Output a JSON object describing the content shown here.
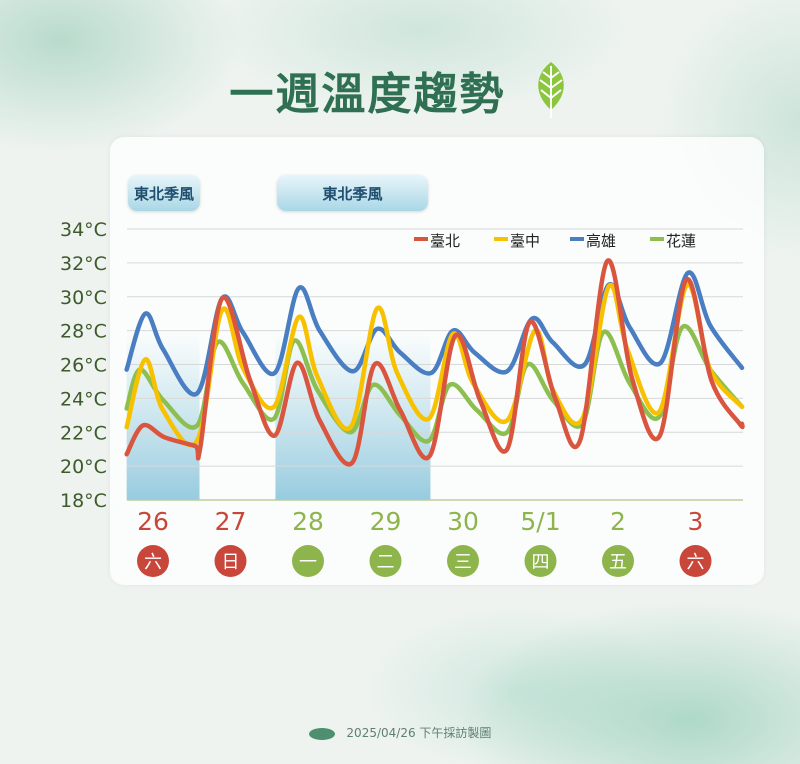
{
  "title": "一週溫度趨勢",
  "footer": "2025/04/26 下午採訪製圖",
  "monsoon_labels": [
    "東北季風",
    "東北季風"
  ],
  "colors": {
    "red_day": "#c8473a",
    "green_day": "#8db54b",
    "title": "#2f6f52",
    "band": "#9fd0e2"
  },
  "icons": {
    "title_icon": "leaf-icon",
    "footer_icon": "logo-icon"
  },
  "chart_data": {
    "type": "line",
    "ylabel": "",
    "ylim": [
      18,
      34
    ],
    "y_ticks": [
      "18°C",
      "20°C",
      "22°C",
      "24°C",
      "26°C",
      "28°C",
      "30°C",
      "32°C",
      "34°C"
    ],
    "y_tick_values": [
      18,
      20,
      22,
      24,
      26,
      28,
      30,
      32,
      34
    ],
    "grid": true,
    "legend_placement": "top-right",
    "categories": [
      "26",
      "27",
      "28",
      "29",
      "30",
      "5/1",
      "2",
      "3"
    ],
    "weekdays": [
      "六",
      "日",
      "一",
      "二",
      "三",
      "四",
      "五",
      "六"
    ],
    "weekday_colors": [
      "red",
      "red",
      "green",
      "green",
      "green",
      "green",
      "green",
      "red"
    ],
    "shaded_ranges": [
      [
        -0.34,
        0.6
      ],
      [
        1.58,
        3.58
      ]
    ],
    "series": [
      {
        "name": "臺北",
        "color": "#d9553f",
        "points": [
          [
            -0.34,
            20.7
          ],
          [
            -0.13,
            22.4
          ],
          [
            0.15,
            21.7
          ],
          [
            0.54,
            21.2
          ],
          [
            0.61,
            21.1
          ],
          [
            0.89,
            29.9
          ],
          [
            1.25,
            25.1
          ],
          [
            1.57,
            21.8
          ],
          [
            1.86,
            26.1
          ],
          [
            2.15,
            22.7
          ],
          [
            2.57,
            20.2
          ],
          [
            2.86,
            26.0
          ],
          [
            3.19,
            23.3
          ],
          [
            3.57,
            20.6
          ],
          [
            3.9,
            27.7
          ],
          [
            4.22,
            23.9
          ],
          [
            4.57,
            21.0
          ],
          [
            4.86,
            28.5
          ],
          [
            5.19,
            24.0
          ],
          [
            5.51,
            21.5
          ],
          [
            5.86,
            32.1
          ],
          [
            6.18,
            25.2
          ],
          [
            6.54,
            21.8
          ],
          [
            6.88,
            31.0
          ],
          [
            7.21,
            25.0
          ],
          [
            7.57,
            22.5
          ],
          [
            7.6,
            22.5
          ]
        ]
      },
      {
        "name": "臺中",
        "color": "#f7c100",
        "points": [
          [
            -0.34,
            22.3
          ],
          [
            -0.1,
            26.3
          ],
          [
            0.13,
            23.3
          ],
          [
            0.57,
            21.5
          ],
          [
            0.89,
            29.2
          ],
          [
            1.16,
            25.8
          ],
          [
            1.56,
            23.5
          ],
          [
            1.88,
            28.8
          ],
          [
            2.12,
            25.3
          ],
          [
            2.55,
            22.3
          ],
          [
            2.89,
            29.3
          ],
          [
            3.15,
            25.5
          ],
          [
            3.56,
            22.8
          ],
          [
            3.87,
            27.8
          ],
          [
            4.13,
            24.9
          ],
          [
            4.57,
            22.7
          ],
          [
            4.93,
            28.0
          ],
          [
            5.16,
            24.5
          ],
          [
            5.54,
            22.8
          ],
          [
            5.88,
            30.6
          ],
          [
            6.12,
            26.9
          ],
          [
            6.53,
            23.2
          ],
          [
            6.89,
            30.7
          ],
          [
            7.19,
            25.7
          ],
          [
            7.6,
            23.5
          ]
        ]
      },
      {
        "name": "高雄",
        "color": "#4a7ec2",
        "points": [
          [
            -0.34,
            25.7
          ],
          [
            -0.1,
            29.0
          ],
          [
            0.13,
            26.9
          ],
          [
            0.57,
            24.3
          ],
          [
            0.89,
            29.9
          ],
          [
            1.16,
            27.9
          ],
          [
            1.57,
            25.5
          ],
          [
            1.88,
            30.5
          ],
          [
            2.15,
            28.0
          ],
          [
            2.58,
            25.6
          ],
          [
            2.89,
            28.1
          ],
          [
            3.19,
            26.7
          ],
          [
            3.59,
            25.5
          ],
          [
            3.87,
            28.0
          ],
          [
            4.15,
            26.7
          ],
          [
            4.57,
            25.6
          ],
          [
            4.89,
            28.7
          ],
          [
            5.16,
            27.3
          ],
          [
            5.57,
            26.0
          ],
          [
            5.88,
            30.7
          ],
          [
            6.15,
            28.2
          ],
          [
            6.55,
            26.1
          ],
          [
            6.9,
            31.4
          ],
          [
            7.19,
            28.3
          ],
          [
            7.6,
            25.8
          ]
        ]
      },
      {
        "name": "花蓮",
        "color": "#8cbf4f",
        "points": [
          [
            -0.34,
            23.4
          ],
          [
            -0.17,
            25.7
          ],
          [
            0.13,
            23.9
          ],
          [
            0.57,
            22.4
          ],
          [
            0.83,
            27.3
          ],
          [
            1.16,
            24.9
          ],
          [
            1.56,
            22.8
          ],
          [
            1.82,
            27.4
          ],
          [
            2.12,
            24.5
          ],
          [
            2.55,
            22.0
          ],
          [
            2.84,
            24.8
          ],
          [
            3.19,
            23.0
          ],
          [
            3.56,
            21.5
          ],
          [
            3.83,
            24.8
          ],
          [
            4.18,
            23.3
          ],
          [
            4.57,
            22.0
          ],
          [
            4.83,
            26.0
          ],
          [
            5.16,
            23.9
          ],
          [
            5.54,
            22.5
          ],
          [
            5.81,
            27.9
          ],
          [
            6.15,
            24.9
          ],
          [
            6.53,
            22.9
          ],
          [
            6.83,
            28.2
          ],
          [
            7.19,
            25.7
          ],
          [
            7.6,
            23.5
          ]
        ]
      }
    ]
  }
}
